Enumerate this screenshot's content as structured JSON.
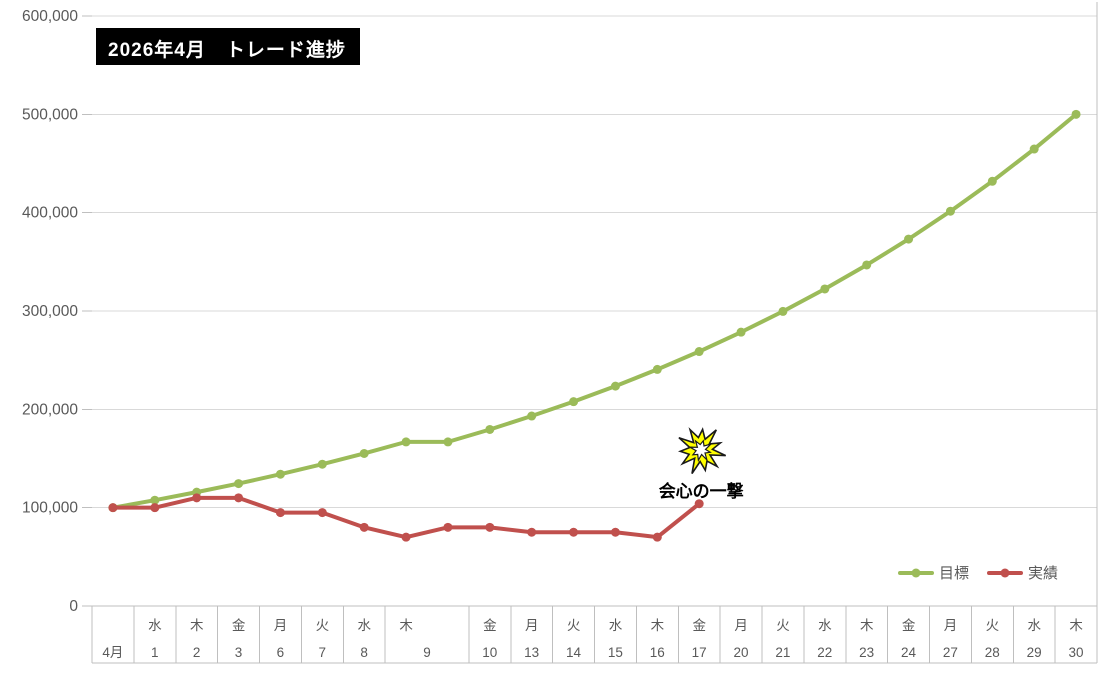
{
  "chart_data": {
    "type": "line",
    "title": "2026年4月　トレード進捗",
    "grid": true,
    "legend_position": "bottom-right",
    "ylim": [
      0,
      600000
    ],
    "y_tick_labels": [
      "0",
      "100,000",
      "200,000",
      "300,000",
      "400,000",
      "500,000",
      "600,000"
    ],
    "x_axis": {
      "categories": [
        {
          "weekday": "",
          "date": "4月",
          "span": 1
        },
        {
          "weekday": "水",
          "date": "1",
          "span": 1
        },
        {
          "weekday": "木",
          "date": "2",
          "span": 1
        },
        {
          "weekday": "金",
          "date": "3",
          "span": 1
        },
        {
          "weekday": "月",
          "date": "6",
          "span": 1
        },
        {
          "weekday": "火",
          "date": "7",
          "span": 1
        },
        {
          "weekday": "水",
          "date": "8",
          "span": 1
        },
        {
          "weekday": "木",
          "date": "9",
          "span": 2
        },
        {
          "weekday": "金",
          "date": "10",
          "span": 1
        },
        {
          "weekday": "月",
          "date": "13",
          "span": 1
        },
        {
          "weekday": "火",
          "date": "14",
          "span": 1
        },
        {
          "weekday": "水",
          "date": "15",
          "span": 1
        },
        {
          "weekday": "木",
          "date": "16",
          "span": 1
        },
        {
          "weekday": "金",
          "date": "17",
          "span": 1
        },
        {
          "weekday": "月",
          "date": "20",
          "span": 1
        },
        {
          "weekday": "火",
          "date": "21",
          "span": 1
        },
        {
          "weekday": "水",
          "date": "22",
          "span": 1
        },
        {
          "weekday": "木",
          "date": "23",
          "span": 1
        },
        {
          "weekday": "金",
          "date": "24",
          "span": 1
        },
        {
          "weekday": "月",
          "date": "27",
          "span": 1
        },
        {
          "weekday": "火",
          "date": "28",
          "span": 1
        },
        {
          "weekday": "水",
          "date": "29",
          "span": 1
        },
        {
          "weekday": "木",
          "date": "30",
          "span": 1
        }
      ]
    },
    "series": [
      {
        "name": "目標",
        "color": "#9BBB59",
        "values": [
          100000,
          107600,
          115800,
          124500,
          134000,
          144200,
          155100,
          166900,
          166900,
          179500,
          193200,
          207800,
          223600,
          240600,
          258800,
          278500,
          299600,
          322400,
          346800,
          373100,
          401500,
          431900,
          464700,
          500000
        ]
      },
      {
        "name": "実績",
        "color": "#C0504D",
        "values": [
          100000,
          100000,
          110000,
          110000,
          95000,
          95000,
          80000,
          70000,
          80000,
          80000,
          75000,
          75000,
          75000,
          70000,
          104000
        ]
      }
    ],
    "annotation": {
      "text": "会心の一撃",
      "icon": "starburst-icon",
      "icon_fill": "#FFFF00",
      "attached_to": {
        "series": "実績",
        "point_index": 14
      }
    }
  }
}
